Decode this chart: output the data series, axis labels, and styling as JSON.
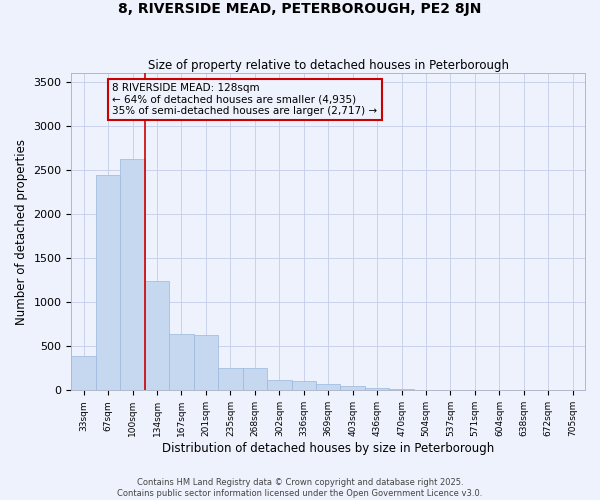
{
  "title": "8, RIVERSIDE MEAD, PETERBOROUGH, PE2 8JN",
  "subtitle": "Size of property relative to detached houses in Peterborough",
  "xlabel": "Distribution of detached houses by size in Peterborough",
  "ylabel": "Number of detached properties",
  "footer_line1": "Contains HM Land Registry data © Crown copyright and database right 2025.",
  "footer_line2": "Contains public sector information licensed under the Open Government Licence v3.0.",
  "property_label": "8 RIVERSIDE MEAD: 128sqm",
  "annotation_line2": "← 64% of detached houses are smaller (4,935)",
  "annotation_line3": "35% of semi-detached houses are larger (2,717) →",
  "bar_color": "#c5d8f0",
  "bar_edge_color": "#9ab8de",
  "vline_color": "#cc0000",
  "annotation_box_edgecolor": "#cc0000",
  "background_color": "#eef2fc",
  "grid_color": "#c4cee8",
  "categories": [
    "33sqm",
    "67sqm",
    "100sqm",
    "134sqm",
    "167sqm",
    "201sqm",
    "235sqm",
    "268sqm",
    "302sqm",
    "336sqm",
    "369sqm",
    "403sqm",
    "436sqm",
    "470sqm",
    "504sqm",
    "537sqm",
    "571sqm",
    "604sqm",
    "638sqm",
    "672sqm",
    "705sqm"
  ],
  "values": [
    390,
    2440,
    2630,
    1240,
    640,
    630,
    250,
    250,
    120,
    110,
    70,
    50,
    25,
    15,
    5,
    5,
    2,
    2,
    1,
    1,
    1
  ],
  "ylim": [
    0,
    3600
  ],
  "yticks": [
    0,
    500,
    1000,
    1500,
    2000,
    2500,
    3000,
    3500
  ],
  "vline_x": 2.5
}
